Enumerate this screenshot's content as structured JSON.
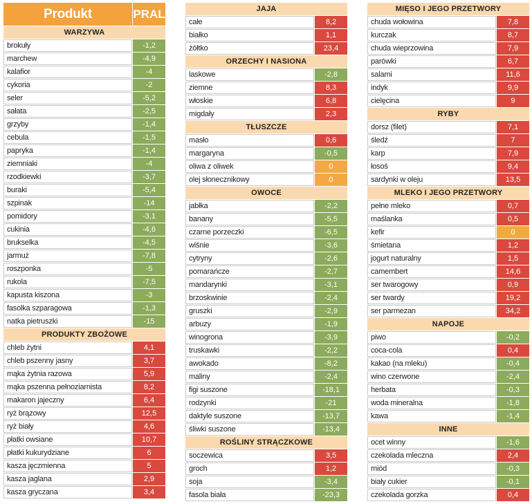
{
  "header": {
    "product_label": "Produkt",
    "value_label": "PRAL"
  },
  "colors": {
    "negative": "#8cab5c",
    "positive": "#d9493e",
    "zero": "#f4a844",
    "header": "#f4a23c",
    "section": "#fbd9ae"
  },
  "columns": [
    {
      "sections": [
        {
          "title": "WARZYWA",
          "rows": [
            {
              "name": "brokuły",
              "value": "-1,2"
            },
            {
              "name": "marchew",
              "value": "-4,9"
            },
            {
              "name": "kalafior",
              "value": "-4"
            },
            {
              "name": "cykoria",
              "value": "-2"
            },
            {
              "name": "seler",
              "value": "-5,2"
            },
            {
              "name": "sałata",
              "value": "-2,5"
            },
            {
              "name": "grzyby",
              "value": "-1,4"
            },
            {
              "name": "cebula",
              "value": "-1,5"
            },
            {
              "name": "papryka",
              "value": "-1,4"
            },
            {
              "name": "ziemniaki",
              "value": "-4"
            },
            {
              "name": "rzodkiewki",
              "value": "-3,7"
            },
            {
              "name": "buraki",
              "value": "-5,4"
            },
            {
              "name": "szpinak",
              "value": "-14"
            },
            {
              "name": "pomidory",
              "value": "-3,1"
            },
            {
              "name": "cukinia",
              "value": "-4,6"
            },
            {
              "name": "brukselka",
              "value": "-4,5"
            },
            {
              "name": "jarmuż",
              "value": "-7,8"
            },
            {
              "name": "roszponka",
              "value": "-5"
            },
            {
              "name": "rukola",
              "value": "-7,5"
            },
            {
              "name": "kapusta kiszona",
              "value": "-3"
            },
            {
              "name": "fasolka szparagowa",
              "value": "-1,3"
            },
            {
              "name": "natka pietruszki",
              "value": "-15"
            }
          ]
        },
        {
          "title": "PRODUKTY ZBOŻOWE",
          "rows": [
            {
              "name": "chleb żytni",
              "value": "4,1"
            },
            {
              "name": "chleb pszenny jasny",
              "value": "3,7"
            },
            {
              "name": "mąka żytnia razowa",
              "value": "5,9"
            },
            {
              "name": "mąka pszenna pełnoziarnista",
              "value": "8,2"
            },
            {
              "name": "makaron jajeczny",
              "value": "6,4"
            },
            {
              "name": "ryż brązowy",
              "value": "12,5"
            },
            {
              "name": "ryż biały",
              "value": "4,6"
            },
            {
              "name": "płatki owsiane",
              "value": "10,7"
            },
            {
              "name": "płatki kukurydziane",
              "value": "6"
            },
            {
              "name": "kasza jęczmienna",
              "value": "5"
            },
            {
              "name": "kasza jaglana",
              "value": "2,9"
            },
            {
              "name": "kasza gryczana",
              "value": "3,4"
            }
          ]
        }
      ]
    },
    {
      "sections": [
        {
          "title": "JAJA",
          "rows": [
            {
              "name": "całe",
              "value": "8,2"
            },
            {
              "name": "białko",
              "value": "1,1"
            },
            {
              "name": "żółtko",
              "value": "23,4"
            }
          ]
        },
        {
          "title": "ORZECHY I NASIONA",
          "rows": [
            {
              "name": "laskowe",
              "value": "-2,8"
            },
            {
              "name": "ziemne",
              "value": "8,3"
            },
            {
              "name": "włoskie",
              "value": "6,8"
            },
            {
              "name": "migdały",
              "value": "2,3"
            }
          ]
        },
        {
          "title": "TŁUSZCZE",
          "rows": [
            {
              "name": "masło",
              "value": "0,6"
            },
            {
              "name": "margaryna",
              "value": "-0,5"
            },
            {
              "name": "oliwa z oliwek",
              "value": "0"
            },
            {
              "name": "olej słonecznikowy",
              "value": "0"
            }
          ]
        },
        {
          "title": "OWOCE",
          "rows": [
            {
              "name": "jabłka",
              "value": "-2,2"
            },
            {
              "name": "banany",
              "value": "-5,5"
            },
            {
              "name": "czarne porzeczki",
              "value": "-6,5"
            },
            {
              "name": "wiśnie",
              "value": "-3,6"
            },
            {
              "name": "cytryny",
              "value": "-2,6"
            },
            {
              "name": "pomarańcze",
              "value": "-2,7"
            },
            {
              "name": "mandarynki",
              "value": "-3,1"
            },
            {
              "name": "brzoskwinie",
              "value": "-2,4"
            },
            {
              "name": "gruszki",
              "value": "-2,9"
            },
            {
              "name": "arbuzy",
              "value": "-1,9"
            },
            {
              "name": "winogrona",
              "value": "-3,9"
            },
            {
              "name": "truskawki",
              "value": "-2,2"
            },
            {
              "name": "awokado",
              "value": "-8,2"
            },
            {
              "name": "maliny",
              "value": "-2,4"
            },
            {
              "name": "figi suszone",
              "value": "-18,1"
            },
            {
              "name": "rodzynki",
              "value": "-21"
            },
            {
              "name": "daktyle suszone",
              "value": "-13,7"
            },
            {
              "name": "śliwki suszone",
              "value": "-13,4"
            }
          ]
        },
        {
          "title": "ROŚLINY STRĄCZKOWE",
          "rows": [
            {
              "name": "soczewica",
              "value": "3,5"
            },
            {
              "name": "groch",
              "value": "1,2"
            },
            {
              "name": "soja",
              "value": "-3,4"
            },
            {
              "name": "fasola biała",
              "value": "-23,3"
            }
          ]
        }
      ]
    },
    {
      "sections": [
        {
          "title": "MIĘSO I JEGO PRZETWORY",
          "rows": [
            {
              "name": "chuda wołowina",
              "value": "7,8"
            },
            {
              "name": "kurczak",
              "value": "8,7"
            },
            {
              "name": "chuda wieprzowina",
              "value": "7,9"
            },
            {
              "name": "parówki",
              "value": "6,7"
            },
            {
              "name": "salami",
              "value": "11,6"
            },
            {
              "name": "indyk",
              "value": "9,9"
            },
            {
              "name": "cielęcina",
              "value": "9"
            }
          ]
        },
        {
          "title": "RYBY",
          "rows": [
            {
              "name": "dorsz (filet)",
              "value": "7,1"
            },
            {
              "name": "śledź",
              "value": "7"
            },
            {
              "name": "karp",
              "value": "7,9"
            },
            {
              "name": "łosoś",
              "value": "9,4"
            },
            {
              "name": "sardynki w oleju",
              "value": "13,5"
            }
          ]
        },
        {
          "title": "MLEKO I JEGO PRZETWORY",
          "rows": [
            {
              "name": "pełne mleko",
              "value": "0,7"
            },
            {
              "name": "maślanka",
              "value": "0,5"
            },
            {
              "name": "kefir",
              "value": "0"
            },
            {
              "name": "śmietana",
              "value": "1,2"
            },
            {
              "name": "jogurt naturalny",
              "value": "1,5"
            },
            {
              "name": "camembert",
              "value": "14,6"
            },
            {
              "name": "ser twarogowy",
              "value": "0,9"
            },
            {
              "name": "ser twardy",
              "value": "19,2"
            },
            {
              "name": "ser parmezan",
              "value": "34,2"
            }
          ]
        },
        {
          "title": "NAPOJE",
          "rows": [
            {
              "name": "piwo",
              "value": "-0,2"
            },
            {
              "name": "coca-cola",
              "value": "0,4"
            },
            {
              "name": "kakao (na mleku)",
              "value": "-0,4"
            },
            {
              "name": "wino czerwone",
              "value": "-2,4"
            },
            {
              "name": "herbata",
              "value": "-0,3"
            },
            {
              "name": "woda mineralna",
              "value": "-1,8"
            },
            {
              "name": "kawa",
              "value": "-1,4"
            }
          ]
        },
        {
          "title": "INNE",
          "rows": [
            {
              "name": "ocet winny",
              "value": "-1,6"
            },
            {
              "name": "czekolada mleczna",
              "value": "2,4"
            },
            {
              "name": "miód",
              "value": "-0,3"
            },
            {
              "name": "biały cukier",
              "value": "-0,1"
            },
            {
              "name": "czekolada gorzka",
              "value": "0,4"
            }
          ]
        }
      ]
    }
  ]
}
